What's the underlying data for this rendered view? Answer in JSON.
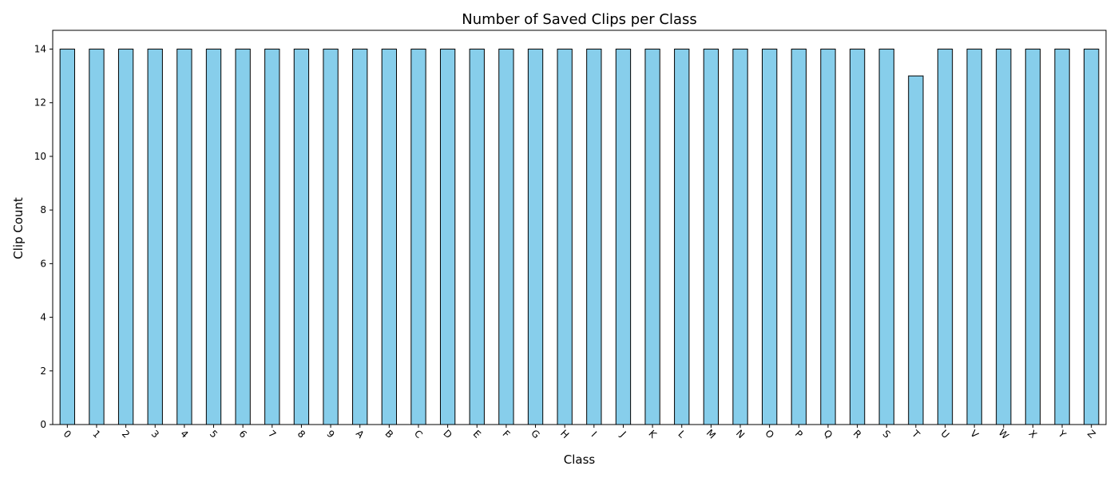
{
  "chart_data": {
    "type": "bar",
    "title": "Number of Saved Clips per Class",
    "xlabel": "Class",
    "ylabel": "Clip Count",
    "categories": [
      "0",
      "1",
      "2",
      "3",
      "4",
      "5",
      "6",
      "7",
      "8",
      "9",
      "A",
      "B",
      "C",
      "D",
      "E",
      "F",
      "G",
      "H",
      "I",
      "J",
      "K",
      "L",
      "M",
      "N",
      "O",
      "P",
      "Q",
      "R",
      "S",
      "T",
      "U",
      "V",
      "W",
      "X",
      "Y",
      "Z"
    ],
    "values": [
      14,
      14,
      14,
      14,
      14,
      14,
      14,
      14,
      14,
      14,
      14,
      14,
      14,
      14,
      14,
      14,
      14,
      14,
      14,
      14,
      14,
      14,
      14,
      14,
      14,
      14,
      14,
      14,
      14,
      13,
      14,
      14,
      14,
      14,
      14,
      14
    ],
    "ylim": [
      0,
      14.7
    ],
    "yticks": [
      0,
      2,
      4,
      6,
      8,
      10,
      12,
      14
    ],
    "grid": false,
    "legend": "none",
    "xtick_rotation": "45deg",
    "colors": {
      "bar_fill": "#87ceeb",
      "bar_edge": "#000000",
      "axis": "#000000",
      "background": "#ffffff"
    }
  }
}
